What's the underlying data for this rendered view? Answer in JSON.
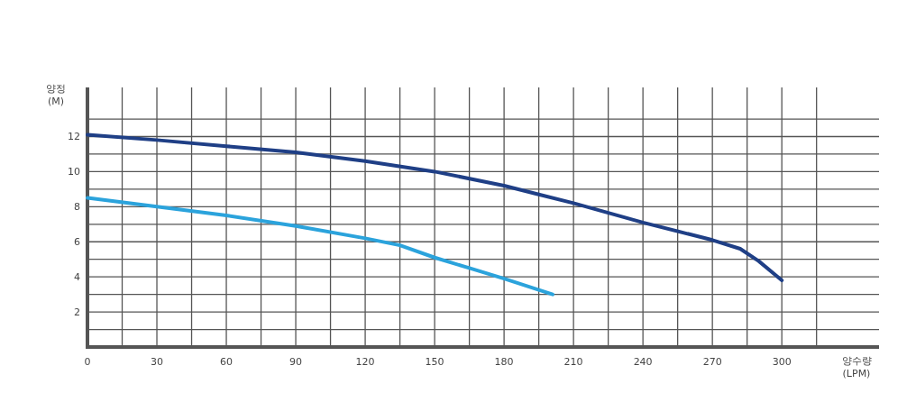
{
  "chart_data": {
    "type": "line",
    "xlabel": "양수량\n(LPM)",
    "ylabel": "양정\n(M)",
    "xlim": [
      0,
      342
    ],
    "ylim": [
      0,
      14.8
    ],
    "xticks": [
      0,
      {
        "value": 15,
        "label": null
      },
      30,
      {
        "value": 45,
        "label": null
      },
      60,
      {
        "value": 75,
        "label": null
      },
      90,
      {
        "value": 105,
        "label": null
      },
      120,
      {
        "value": 135,
        "label": null
      },
      150,
      {
        "value": 165,
        "label": null
      },
      180,
      {
        "value": 195,
        "label": null
      },
      210,
      {
        "value": 225,
        "label": null
      },
      240,
      {
        "value": 255,
        "label": null
      },
      270,
      {
        "value": 285,
        "label": null
      },
      300,
      {
        "value": 315,
        "label": null
      }
    ],
    "yticks": [
      {
        "value": 1,
        "label": null
      },
      2,
      {
        "value": 3,
        "label": null
      },
      4,
      {
        "value": 5,
        "label": null
      },
      6,
      {
        "value": 7,
        "label": null
      },
      8,
      {
        "value": 9,
        "label": null
      },
      10,
      {
        "value": 11,
        "label": null
      },
      12,
      {
        "value": 13,
        "label": null
      }
    ],
    "grid": true,
    "series": [
      {
        "color": "#2ba3dc",
        "x": [
          0,
          30,
          60,
          90,
          120,
          135,
          150,
          165,
          180,
          201
        ],
        "values": [
          8.5,
          8.0,
          7.5,
          6.9,
          6.2,
          5.8,
          5.1,
          4.5,
          3.9,
          3.0
        ]
      },
      {
        "color": "#1f3f86",
        "x": [
          0,
          30,
          60,
          90,
          120,
          150,
          180,
          195,
          210,
          240,
          270,
          282,
          290,
          300
        ],
        "values": [
          12.1,
          11.8,
          11.45,
          11.1,
          10.6,
          10.0,
          9.2,
          8.7,
          8.2,
          7.1,
          6.1,
          5.6,
          4.9,
          3.8
        ]
      }
    ]
  }
}
